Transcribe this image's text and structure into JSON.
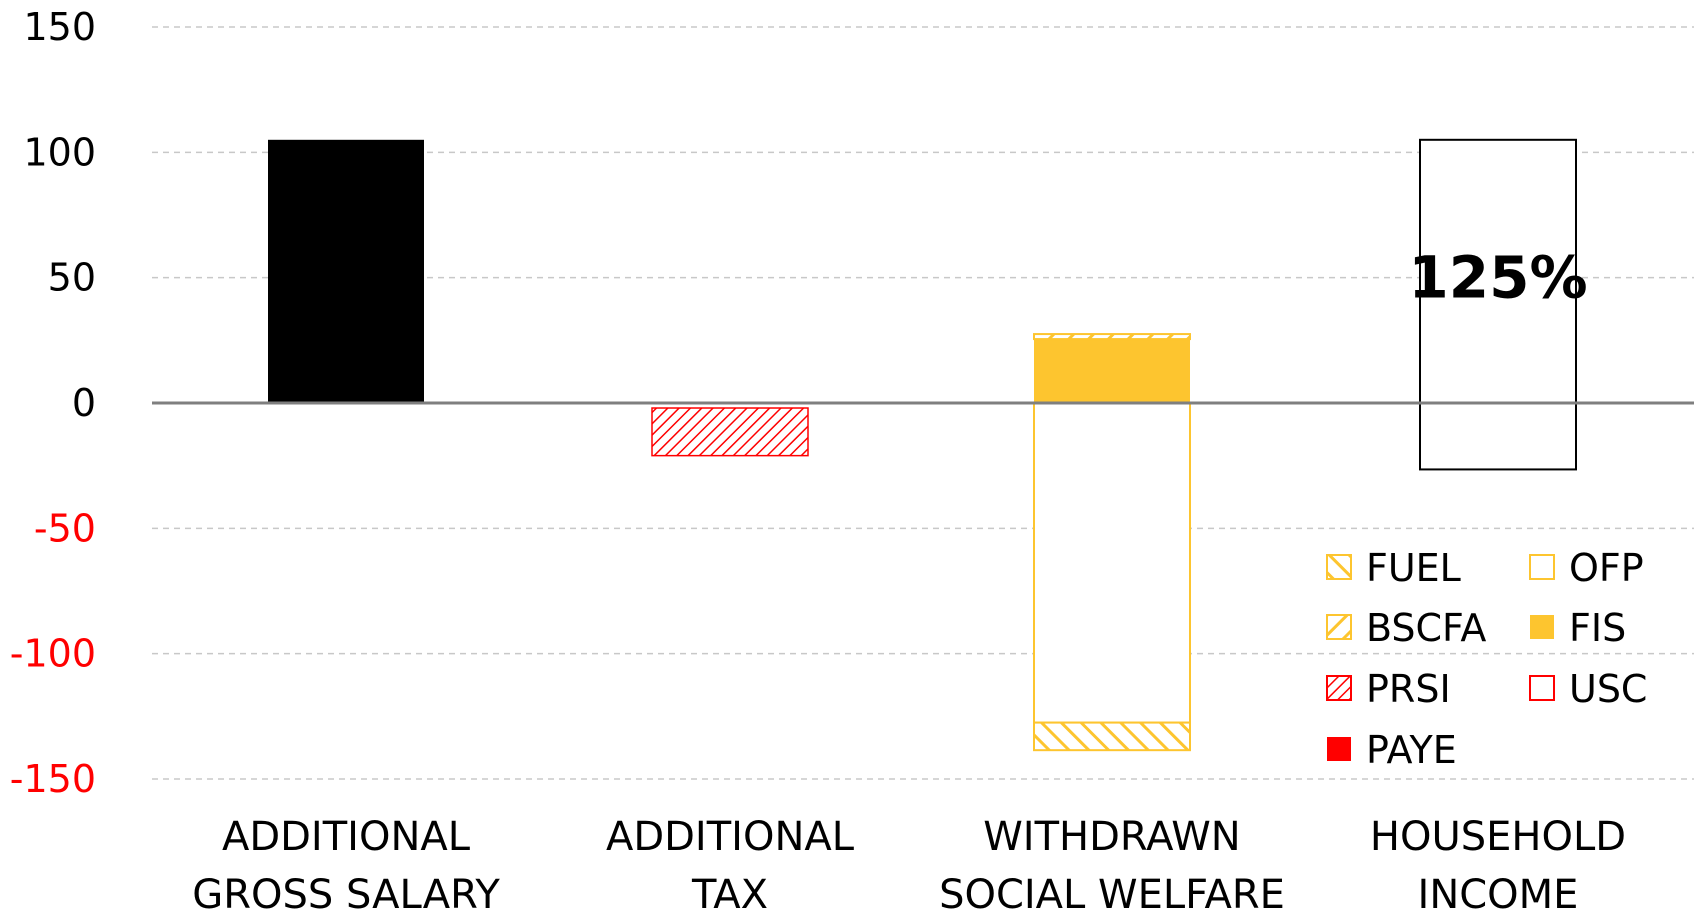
{
  "chart_data": {
    "type": "bar",
    "categories": [
      [
        "ADDITIONAL",
        "GROSS SALARY"
      ],
      [
        "ADDITIONAL",
        "TAX"
      ],
      [
        "WITHDRAWN",
        "SOCIAL WELFARE"
      ],
      [
        "HOUSEHOLD",
        "INCOME"
      ]
    ],
    "ylim": [
      -150,
      150
    ],
    "yticks": [
      150,
      100,
      50,
      0,
      -50,
      -100,
      -150
    ],
    "negative_tick_color": "#ff0000",
    "grid": true,
    "legend_position": "bottom-right",
    "annotation": {
      "text": "125%",
      "category_index": 3
    },
    "segments": [
      {
        "category_index": 0,
        "y0": 0,
        "y1": 105,
        "style": "solid-black"
      },
      {
        "category_index": 1,
        "y0": -2,
        "y1": -21,
        "style": "hatch-red",
        "series": "PRSI"
      },
      {
        "category_index": 2,
        "y0": 0,
        "y1": 25.5,
        "style": "solid-yellow",
        "series": "FIS"
      },
      {
        "category_index": 2,
        "y0": 25.5,
        "y1": 27.5,
        "style": "hatch-yellow",
        "series": "BSCFA"
      },
      {
        "category_index": 2,
        "y0": 0,
        "y1": -127.5,
        "style": "outline-yellow",
        "series": "OFP"
      },
      {
        "category_index": 2,
        "y0": -127.5,
        "y1": -138.5,
        "style": "hatch-yellow-back",
        "series": "FUEL"
      },
      {
        "category_index": 3,
        "y0": -26.5,
        "y1": 105,
        "style": "outline-black"
      }
    ],
    "legend": [
      {
        "label": "FUEL",
        "style": "hatch-yellow-back"
      },
      {
        "label": "OFP",
        "style": "outline-yellow"
      },
      {
        "label": "BSCFA",
        "style": "hatch-yellow"
      },
      {
        "label": "FIS",
        "style": "solid-yellow"
      },
      {
        "label": "PRSI",
        "style": "hatch-red"
      },
      {
        "label": "USC",
        "style": "outline-red"
      },
      {
        "label": "PAYE",
        "style": "solid-red"
      }
    ],
    "colors": {
      "black": "#000000",
      "yellow": "#fdc52f",
      "red": "#ff0000",
      "grid": "#c8c8c8",
      "zero_line": "#7f7f7f"
    }
  }
}
